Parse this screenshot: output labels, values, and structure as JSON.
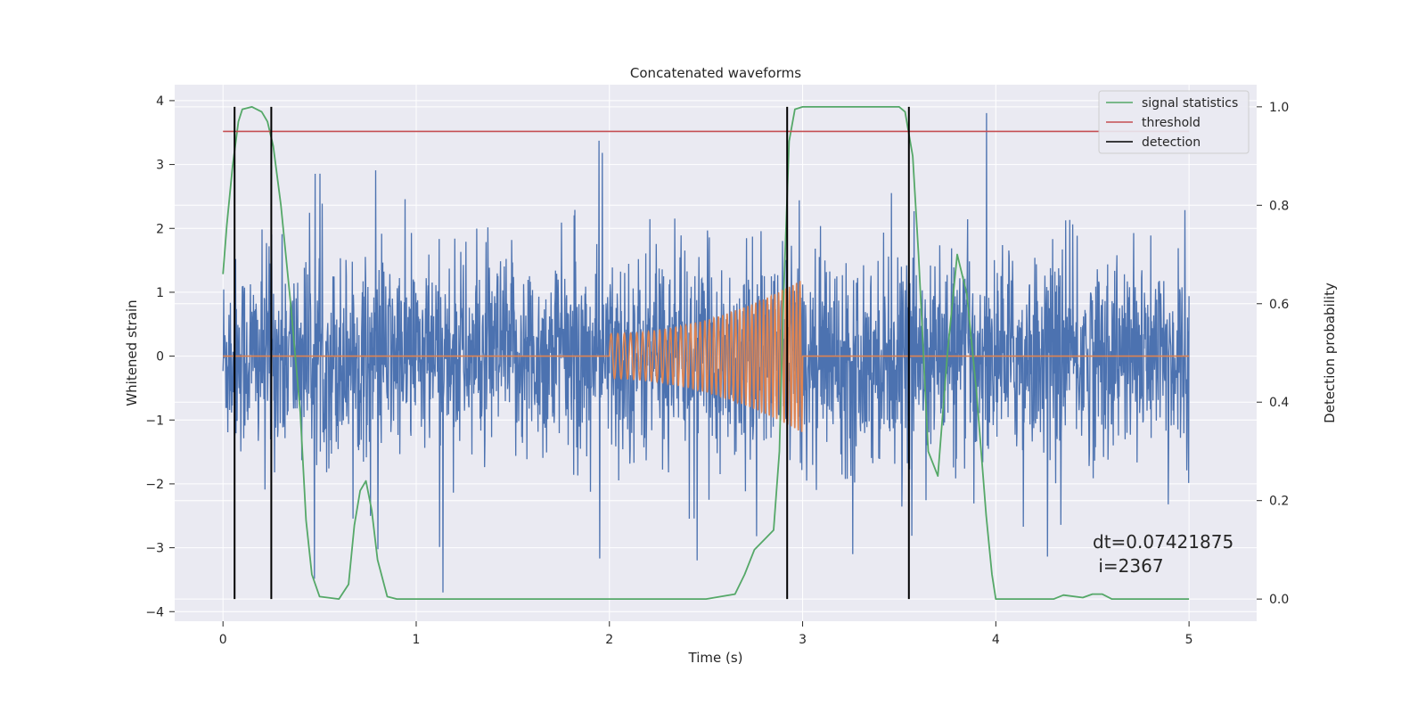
{
  "chart_data": {
    "type": "line",
    "title": "Concatenated waveforms",
    "xlabel": "Time (s)",
    "ylabel": "Whitened strain",
    "y2label": "Detection probability",
    "xlim": [
      -0.25,
      5.35
    ],
    "ylim": [
      -4.15,
      4.25
    ],
    "y2lim": [
      -0.045,
      1.045
    ],
    "xticks": [
      0,
      1,
      2,
      3,
      4,
      5
    ],
    "yticks": [
      -4,
      -3,
      -2,
      -1,
      0,
      1,
      2,
      3,
      4
    ],
    "y2ticks": [
      0.0,
      0.2,
      0.4,
      0.6,
      0.8,
      1.0
    ],
    "grid": true,
    "legend_position": "top-right",
    "legend": [
      "signal statistics",
      "threshold",
      "detection"
    ],
    "colors": {
      "noise": "#4c72b0",
      "waveform": "#dd8452",
      "signal_statistics": "#55a868",
      "threshold": "#c44e52",
      "detection": "#000000",
      "background": "#eaeaf2",
      "grid": "#ffffff"
    },
    "noise": {
      "x_range": [
        0,
        5
      ],
      "typical_band": [
        -0.7,
        0.85
      ],
      "peak_range": [
        -3.7,
        3.9
      ]
    },
    "waveform": {
      "x_range": [
        2.0,
        3.0
      ],
      "amplitude_start": 0.35,
      "amplitude_end": 1.2
    },
    "threshold": {
      "x_range": [
        0,
        5
      ],
      "value": 0.95
    },
    "detections": [
      0.06,
      0.25,
      2.92,
      3.55
    ],
    "signal_statistics": {
      "x": [
        0,
        0.02,
        0.05,
        0.08,
        0.1,
        0.15,
        0.2,
        0.23,
        0.26,
        0.3,
        0.35,
        0.4,
        0.43,
        0.46,
        0.5,
        0.6,
        0.65,
        0.68,
        0.71,
        0.74,
        0.77,
        0.8,
        0.85,
        0.9,
        1.5,
        2.0,
        2.5,
        2.65,
        2.7,
        2.75,
        2.8,
        2.85,
        2.88,
        2.9,
        2.93,
        2.96,
        3.0,
        3.5,
        3.53,
        3.57,
        3.6,
        3.65,
        3.7,
        3.75,
        3.8,
        3.85,
        3.9,
        3.95,
        3.98,
        4.0,
        4.3,
        4.35,
        4.45,
        4.5,
        4.55,
        4.6,
        5.0
      ],
      "values": [
        0.66,
        0.76,
        0.88,
        0.97,
        0.995,
        1.0,
        0.99,
        0.97,
        0.92,
        0.8,
        0.6,
        0.38,
        0.16,
        0.05,
        0.005,
        0.0,
        0.03,
        0.15,
        0.22,
        0.24,
        0.18,
        0.08,
        0.005,
        0.0,
        0.0,
        0.0,
        0.0,
        0.01,
        0.05,
        0.1,
        0.12,
        0.14,
        0.3,
        0.6,
        0.93,
        0.995,
        1.0,
        1.0,
        0.99,
        0.9,
        0.7,
        0.3,
        0.25,
        0.5,
        0.7,
        0.62,
        0.42,
        0.17,
        0.05,
        0.0,
        0.0,
        0.008,
        0.003,
        0.01,
        0.01,
        0.0,
        0.0
      ]
    },
    "annotation": "dt=0.07421875\n i=2367"
  }
}
